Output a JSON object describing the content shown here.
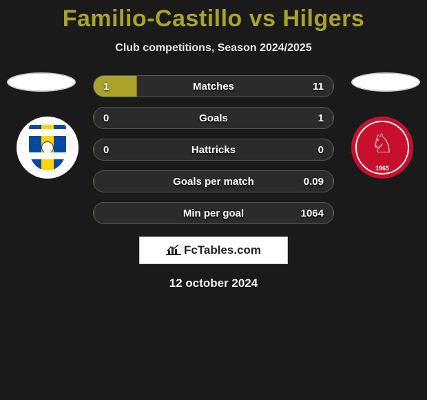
{
  "accent_color": "#a9a32b",
  "background_color": "#1a1a1a",
  "title": "Familio-Castillo vs Hilgers",
  "subtitle": "Club competitions, Season 2024/2025",
  "branding": "FcTables.com",
  "date": "12 october 2024",
  "badges": {
    "left_year": "",
    "right_year": "1965"
  },
  "bars": [
    {
      "label": "Matches",
      "left_val": "1",
      "right_val": "11",
      "left_pct": 18,
      "right_pct": 0
    },
    {
      "label": "Goals",
      "left_val": "0",
      "right_val": "1",
      "left_pct": 0,
      "right_pct": 0
    },
    {
      "label": "Hattricks",
      "left_val": "0",
      "right_val": "0",
      "left_pct": 0,
      "right_pct": 0
    },
    {
      "label": "Goals per match",
      "left_val": "",
      "right_val": "0.09",
      "left_pct": 0,
      "right_pct": 0
    },
    {
      "label": "Min per goal",
      "left_val": "",
      "right_val": "1064",
      "left_pct": 0,
      "right_pct": 0
    }
  ]
}
